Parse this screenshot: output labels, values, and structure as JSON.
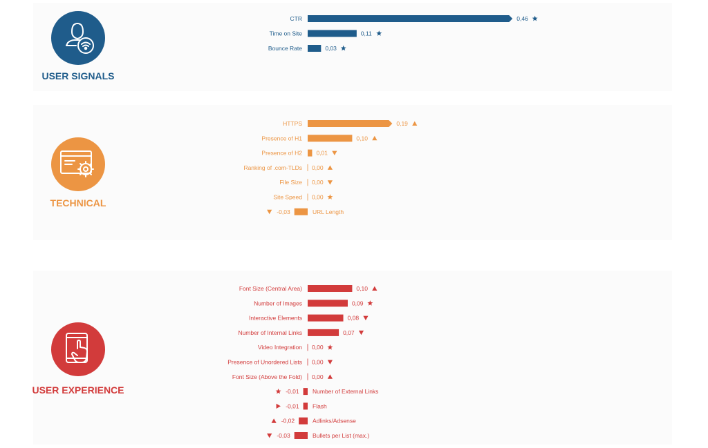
{
  "colors": {
    "user_signals": "#1f5c8b",
    "technical": "#ec9543",
    "user_experience": "#d23b3b"
  },
  "categories": [
    {
      "id": "user_signals",
      "title": "USER SIGNALS",
      "icon": "user-wifi-icon"
    },
    {
      "id": "technical",
      "title": "TECHNICAL",
      "icon": "browser-gear-icon"
    },
    {
      "id": "user_experience",
      "title": "USER EXPERIENCE",
      "icon": "tablet-touch-icon"
    }
  ],
  "legend_markers": {
    "star": "star-marker",
    "up": "triangle-up-marker",
    "down": "triangle-down-marker",
    "right": "triangle-right-marker"
  },
  "chart_data": [
    {
      "type": "bar",
      "orientation": "horizontal",
      "group": "USER SIGNALS",
      "categories": [
        "CTR",
        "Time on Site",
        "Bounce Rate"
      ],
      "values": [
        0.46,
        0.11,
        0.03
      ],
      "value_labels": [
        "0,46",
        "0,11",
        "0,03"
      ],
      "markers": [
        "star",
        "star",
        "star"
      ],
      "xlim": [
        -0.05,
        0.5
      ]
    },
    {
      "type": "bar",
      "orientation": "horizontal",
      "group": "TECHNICAL",
      "categories": [
        "HTTPS",
        "Presence of H1",
        "Presence of H2",
        "Ranking of .com-TLDs",
        "File Size",
        "Site Speed",
        "URL Length"
      ],
      "values": [
        0.19,
        0.1,
        0.01,
        0.0,
        0.0,
        0.0,
        -0.03
      ],
      "value_labels": [
        "0,19",
        "0,10",
        "0,01",
        "0,00",
        "0,00",
        "0,00",
        "-0,03"
      ],
      "markers": [
        "up",
        "up",
        "down",
        "up",
        "down",
        "star",
        "down"
      ],
      "xlim": [
        -0.05,
        0.5
      ]
    },
    {
      "type": "bar",
      "orientation": "horizontal",
      "group": "USER EXPERIENCE",
      "categories": [
        "Font Size (Central Area)",
        "Number of Images",
        "Interactive Elements",
        "Number of Internal Links",
        "Video Integration",
        "Presence of Unordered Lists",
        "Font Size (Above the Fold)",
        "Number of External Links",
        "Flash",
        "Adlinks/Adsense",
        "Bullets per List (max.)"
      ],
      "values": [
        0.1,
        0.09,
        0.08,
        0.07,
        0.0,
        0.0,
        0.0,
        -0.01,
        -0.01,
        -0.02,
        -0.03
      ],
      "value_labels": [
        "0,10",
        "0,09",
        "0,08",
        "0,07",
        "0,00",
        "0,00",
        "0,00",
        "-0,01",
        "-0,01",
        "-0,02",
        "-0,03"
      ],
      "markers": [
        "up",
        "star",
        "down",
        "down",
        "star",
        "down",
        "up",
        "star",
        "right",
        "up",
        "down"
      ],
      "xlim": [
        -0.05,
        0.5
      ]
    }
  ]
}
